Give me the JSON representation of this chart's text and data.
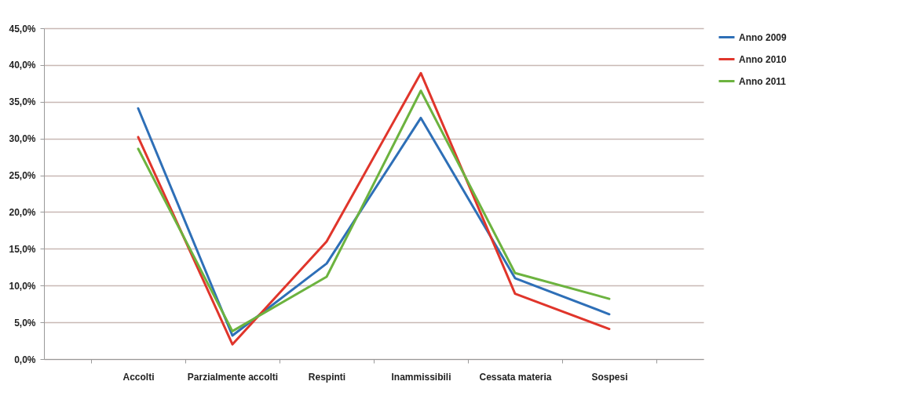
{
  "chart_data": {
    "type": "line",
    "categories": [
      "Accolti",
      "Parzialmente accolti",
      "Respinti",
      "Inammissibili",
      "Cessata materia",
      "Sospesi"
    ],
    "series": [
      {
        "name": "Anno 2009",
        "color": "#2e6fb7",
        "values": [
          34.1,
          3.2,
          13.0,
          32.8,
          11.0,
          6.1
        ]
      },
      {
        "name": "Anno 2010",
        "color": "#e0352b",
        "values": [
          30.2,
          2.0,
          16.0,
          38.9,
          8.9,
          4.1
        ]
      },
      {
        "name": "Anno 2011",
        "color": "#6cb33f",
        "values": [
          28.6,
          3.8,
          11.2,
          36.5,
          11.7,
          8.2
        ]
      }
    ],
    "ylim": [
      0,
      45
    ],
    "yticks": [
      {
        "value": 0,
        "label": "0,0%"
      },
      {
        "value": 5,
        "label": "5,0%"
      },
      {
        "value": 10,
        "label": "10,0%"
      },
      {
        "value": 15,
        "label": "15,0%"
      },
      {
        "value": 20,
        "label": "20,0%"
      },
      {
        "value": 25,
        "label": "25,0%"
      },
      {
        "value": 30,
        "label": "30,0%"
      },
      {
        "value": 35,
        "label": "35,0%"
      },
      {
        "value": 40,
        "label": "40,0%"
      },
      {
        "value": 45,
        "label": "45,0%"
      }
    ],
    "grid": "y",
    "legend": "right",
    "marker": "none",
    "line_style": "solid"
  }
}
